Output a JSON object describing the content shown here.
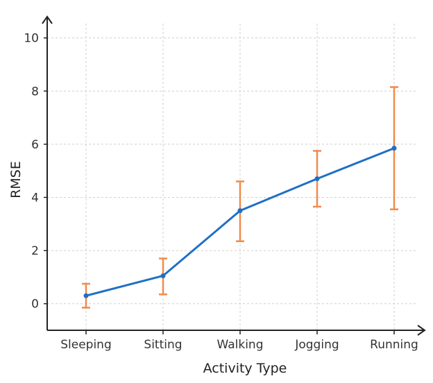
{
  "chart_data": {
    "type": "line",
    "title": "",
    "xlabel": "Activity Type",
    "ylabel": "RMSE",
    "categories": [
      "Sleeping",
      "Sitting",
      "Walking",
      "Jogging",
      "Running"
    ],
    "ylim": [
      -1,
      10.8
    ],
    "yticks": [
      0,
      2,
      4,
      6,
      8,
      10
    ],
    "grid": true,
    "legend": "none",
    "series": [
      {
        "values": [
          0.3,
          1.05,
          3.5,
          4.7,
          5.85
        ],
        "error_low": [
          -0.15,
          0.35,
          2.35,
          3.65,
          3.55
        ],
        "error_high": [
          0.75,
          1.7,
          4.6,
          5.75,
          8.15
        ],
        "line_color": "#1f6fc4",
        "error_color": "#f08a4b"
      }
    ]
  }
}
